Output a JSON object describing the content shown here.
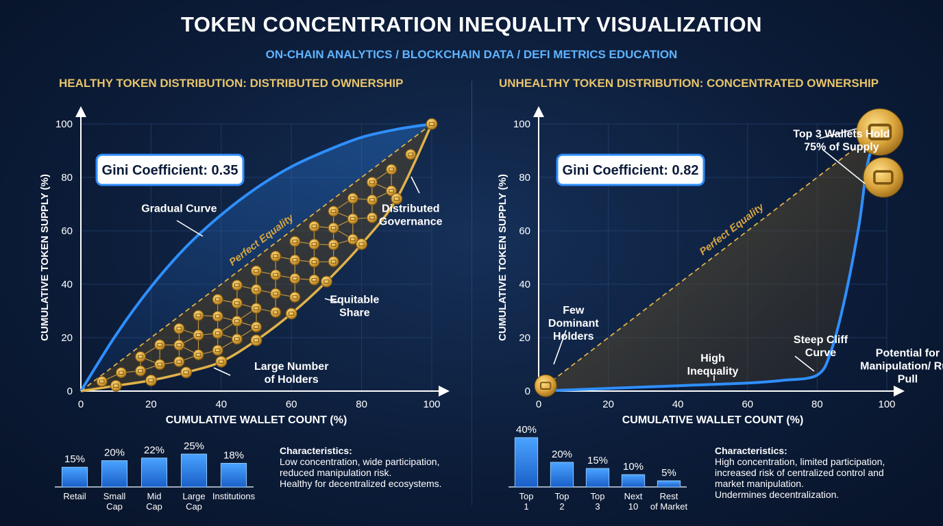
{
  "title": "TOKEN CONCENTRATION INEQUALITY VISUALIZATION",
  "subtitle": "ON-CHAIN ANALYTICS / BLOCKCHAIN DATA / DEFI METRICS EDUCATION",
  "colors": {
    "accent_blue": "#2f8fff",
    "gold": "#e0b24a",
    "panel_title": "#e8c46a",
    "background": "#0a1a33"
  },
  "chart_data": [
    {
      "type": "line",
      "title": "HEALTHY TOKEN DISTRIBUTION: DISTRIBUTED OWNERSHIP",
      "xlabel": "CUMULATIVE WALLET COUNT (%)",
      "ylabel": "CUMULATIVE TOKEN SUPPLY (%)",
      "xlim": [
        0,
        100
      ],
      "ylim": [
        0,
        100
      ],
      "x_ticks": [
        0,
        20,
        40,
        60,
        80,
        100
      ],
      "y_ticks": [
        0,
        20,
        40,
        60,
        80,
        100
      ],
      "gini_label": "Gini Coefficient: 0.35",
      "equality_label": "Perfect Equality",
      "series": [
        {
          "x": [
            0,
            10,
            20,
            30,
            40,
            50,
            60,
            70,
            80,
            90,
            100
          ],
          "y": [
            0,
            21,
            39,
            54,
            66,
            76,
            84,
            90,
            95,
            98,
            100
          ]
        },
        {
          "x": [
            0,
            10,
            20,
            30,
            40,
            50,
            60,
            70,
            80,
            90,
            100
          ],
          "y": [
            0,
            2,
            4,
            7,
            11,
            19,
            29,
            41,
            55,
            72,
            100
          ]
        }
      ],
      "annotations": [
        {
          "text": "Gradual Curve",
          "x": 28,
          "y": 67
        },
        {
          "text": "Distributed Governance",
          "x": 94,
          "y": 67
        },
        {
          "text": "Equitable Share",
          "x": 78,
          "y": 33
        },
        {
          "text": "Large Number of Holders",
          "x": 60,
          "y": 8
        }
      ]
    },
    {
      "type": "line",
      "title": "UNHEALTHY TOKEN DISTRIBUTION: CONCENTRATED OWNERSHIP",
      "xlabel": "CUMULATIVE WALLET COUNT (%)",
      "ylabel": "CUMULATIVE TOKEN SUPPLY (%)",
      "xlim": [
        0,
        100
      ],
      "ylim": [
        0,
        100
      ],
      "x_ticks": [
        0,
        20,
        40,
        60,
        80,
        100
      ],
      "y_ticks": [
        0,
        20,
        40,
        60,
        80,
        100
      ],
      "gini_label": "Gini Coefficient: 0.82",
      "equality_label": "Perfect Equality",
      "series": [
        {
          "x": [
            0,
            20,
            40,
            60,
            70,
            80,
            84,
            88,
            92,
            95,
            100
          ],
          "y": [
            0,
            1,
            2,
            3,
            4,
            6,
            15,
            35,
            62,
            88,
            100
          ]
        }
      ],
      "annotations": [
        {
          "text": "Top 3 Wallets Hold 75% of Supply",
          "x": 87,
          "y": 95
        },
        {
          "text": "Few Dominant Holders",
          "x": 10,
          "y": 29
        },
        {
          "text": "High Inequality",
          "x": 50,
          "y": 11
        },
        {
          "text": "Steep Cliff Curve",
          "x": 81,
          "y": 18
        },
        {
          "text": "Potential for Manipulation/ Rug Pull",
          "x": 106,
          "y": 13
        }
      ]
    },
    {
      "type": "bar",
      "categories": [
        "Retail",
        "Small Cap",
        "Mid Cap",
        "Large Cap",
        "Institutions"
      ],
      "values": [
        15,
        20,
        22,
        25,
        18
      ],
      "value_labels": [
        "15%",
        "20%",
        "22%",
        "25%",
        "18%"
      ]
    },
    {
      "type": "bar",
      "categories": [
        "Top 1",
        "Top 2",
        "Top 3",
        "Next 10",
        "Rest of Market"
      ],
      "values": [
        40,
        20,
        15,
        10,
        5
      ],
      "value_labels": [
        "40%",
        "20%",
        "15%",
        "10%",
        "5%"
      ]
    }
  ],
  "characteristics": {
    "left": {
      "heading": "Characteristics:",
      "lines": [
        "Low concentration, wide participation,",
        "reduced manipulation risk.",
        "Healthy for decentralized ecosystems."
      ]
    },
    "right": {
      "heading": "Characteristics:",
      "lines": [
        "High concentration, limited participation,",
        "increased risk of centralized control and",
        "market manipulation.",
        "Undermines decentralization."
      ]
    }
  }
}
